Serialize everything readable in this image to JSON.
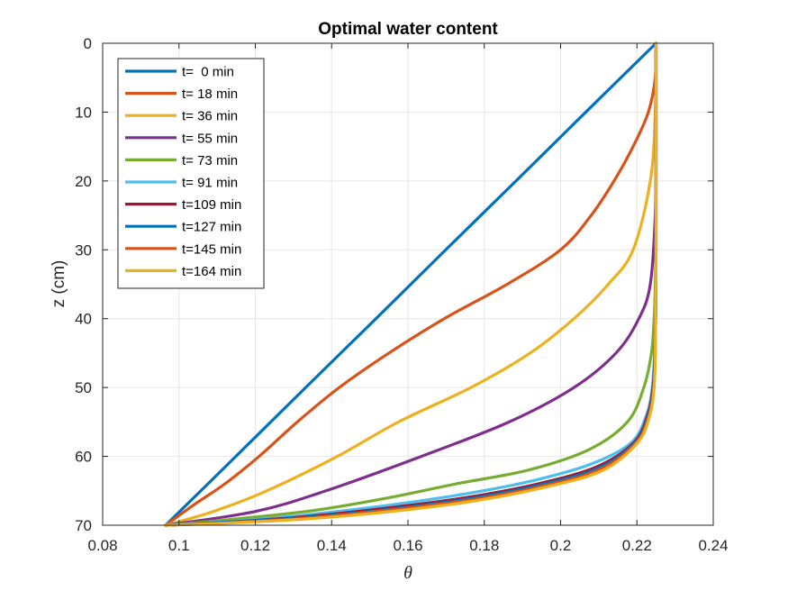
{
  "chart_data": {
    "type": "line",
    "title": "Optimal water content",
    "xlabel": "θ",
    "ylabel": "z (cm)",
    "xlim": [
      0.08,
      0.24
    ],
    "ylim": [
      0,
      70
    ],
    "y_reversed": true,
    "grid": true,
    "legend_position": "top-left",
    "xticks": [
      "0.08",
      "0.1",
      "0.12",
      "0.14",
      "0.16",
      "0.18",
      "0.2",
      "0.22",
      "0.24"
    ],
    "yticks": [
      "0",
      "10",
      "20",
      "30",
      "40",
      "50",
      "60",
      "70"
    ],
    "series": [
      {
        "name": "t=  0 min",
        "color": "#0072BD",
        "points": [
          [
            0.225,
            0
          ],
          [
            0.2066,
            10
          ],
          [
            0.1883,
            20
          ],
          [
            0.1699,
            30
          ],
          [
            0.1516,
            40
          ],
          [
            0.1332,
            50
          ],
          [
            0.1149,
            60
          ],
          [
            0.0965,
            70
          ]
        ]
      },
      {
        "name": "t= 18 min",
        "color": "#D95319",
        "points": [
          [
            0.225,
            0
          ],
          [
            0.2248,
            5
          ],
          [
            0.223,
            10
          ],
          [
            0.219,
            15
          ],
          [
            0.214,
            20
          ],
          [
            0.208,
            25
          ],
          [
            0.2,
            30
          ],
          [
            0.186,
            35
          ],
          [
            0.1695,
            40
          ],
          [
            0.155,
            45
          ],
          [
            0.142,
            50
          ],
          [
            0.131,
            55
          ],
          [
            0.121,
            60
          ],
          [
            0.112,
            64
          ],
          [
            0.104,
            67
          ],
          [
            0.0965,
            70
          ]
        ]
      },
      {
        "name": "t= 36 min",
        "color": "#EDB120",
        "points": [
          [
            0.225,
            0
          ],
          [
            0.2248,
            10
          ],
          [
            0.2235,
            20
          ],
          [
            0.219,
            30
          ],
          [
            0.2125,
            35
          ],
          [
            0.2035,
            40
          ],
          [
            0.192,
            45
          ],
          [
            0.1765,
            50
          ],
          [
            0.1575,
            55
          ],
          [
            0.1415,
            60
          ],
          [
            0.123,
            65
          ],
          [
            0.109,
            68
          ],
          [
            0.0965,
            70
          ]
        ]
      },
      {
        "name": "t= 55 min",
        "color": "#7E2F8E",
        "points": [
          [
            0.225,
            0
          ],
          [
            0.225,
            15
          ],
          [
            0.2248,
            25
          ],
          [
            0.2235,
            35
          ],
          [
            0.2205,
            40
          ],
          [
            0.2145,
            45
          ],
          [
            0.2035,
            50
          ],
          [
            0.1865,
            55
          ],
          [
            0.1635,
            60
          ],
          [
            0.1385,
            65
          ],
          [
            0.12,
            68
          ],
          [
            0.0965,
            70
          ]
        ]
      },
      {
        "name": "t= 73 min",
        "color": "#77AC30",
        "points": [
          [
            0.225,
            0
          ],
          [
            0.225,
            25
          ],
          [
            0.2248,
            35
          ],
          [
            0.2245,
            40
          ],
          [
            0.2238,
            45
          ],
          [
            0.2218,
            50
          ],
          [
            0.2175,
            55
          ],
          [
            0.2075,
            59
          ],
          [
            0.1915,
            62
          ],
          [
            0.1725,
            64
          ],
          [
            0.155,
            66
          ],
          [
            0.136,
            67.8
          ],
          [
            0.1165,
            69
          ],
          [
            0.0965,
            70
          ]
        ]
      },
      {
        "name": "t= 91 min",
        "color": "#4DBEEE",
        "points": [
          [
            0.225,
            0
          ],
          [
            0.225,
            30
          ],
          [
            0.2249,
            40
          ],
          [
            0.2246,
            45
          ],
          [
            0.224,
            50
          ],
          [
            0.2225,
            54
          ],
          [
            0.2185,
            58
          ],
          [
            0.2085,
            61
          ],
          [
            0.193,
            63.5
          ],
          [
            0.1745,
            65.5
          ],
          [
            0.1535,
            67.2
          ],
          [
            0.133,
            68.5
          ],
          [
            0.112,
            69.5
          ],
          [
            0.0965,
            70
          ]
        ]
      },
      {
        "name": "t=109 min",
        "color": "#A2142F",
        "points": [
          [
            0.225,
            0
          ],
          [
            0.225,
            30
          ],
          [
            0.2249,
            40
          ],
          [
            0.2247,
            45
          ],
          [
            0.2242,
            50
          ],
          [
            0.2228,
            54
          ],
          [
            0.2192,
            58
          ],
          [
            0.2095,
            61.5
          ],
          [
            0.194,
            64
          ],
          [
            0.175,
            66
          ],
          [
            0.153,
            67.6
          ],
          [
            0.132,
            68.8
          ],
          [
            0.111,
            69.6
          ],
          [
            0.0965,
            70
          ]
        ]
      },
      {
        "name": "t=127 min",
        "color": "#0072BD",
        "points": [
          [
            0.225,
            0
          ],
          [
            0.225,
            30
          ],
          [
            0.2249,
            40
          ],
          [
            0.2247,
            45
          ],
          [
            0.2243,
            50
          ],
          [
            0.223,
            54
          ],
          [
            0.2195,
            58
          ],
          [
            0.2098,
            61.7
          ],
          [
            0.1942,
            64.2
          ],
          [
            0.1752,
            66.2
          ],
          [
            0.1532,
            67.8
          ],
          [
            0.1322,
            68.9
          ],
          [
            0.111,
            69.6
          ],
          [
            0.0965,
            70
          ]
        ]
      },
      {
        "name": "t=145 min",
        "color": "#D95319",
        "points": [
          [
            0.225,
            0
          ],
          [
            0.225,
            30
          ],
          [
            0.2249,
            40
          ],
          [
            0.2248,
            45
          ],
          [
            0.2244,
            50
          ],
          [
            0.2232,
            54
          ],
          [
            0.2198,
            58
          ],
          [
            0.2102,
            61.9
          ],
          [
            0.1946,
            64.4
          ],
          [
            0.1755,
            66.4
          ],
          [
            0.1535,
            67.9
          ],
          [
            0.1325,
            69
          ],
          [
            0.1112,
            69.7
          ],
          [
            0.0965,
            70
          ]
        ]
      },
      {
        "name": "t=164 min",
        "color": "#EDB120",
        "points": [
          [
            0.225,
            0
          ],
          [
            0.225,
            30
          ],
          [
            0.2249,
            40
          ],
          [
            0.2248,
            45
          ],
          [
            0.2245,
            50
          ],
          [
            0.2234,
            54
          ],
          [
            0.2202,
            58
          ],
          [
            0.2108,
            62.1
          ],
          [
            0.195,
            64.6
          ],
          [
            0.176,
            66.6
          ],
          [
            0.154,
            68.1
          ],
          [
            0.133,
            69.1
          ],
          [
            0.1115,
            69.7
          ],
          [
            0.0965,
            70
          ]
        ]
      }
    ]
  }
}
